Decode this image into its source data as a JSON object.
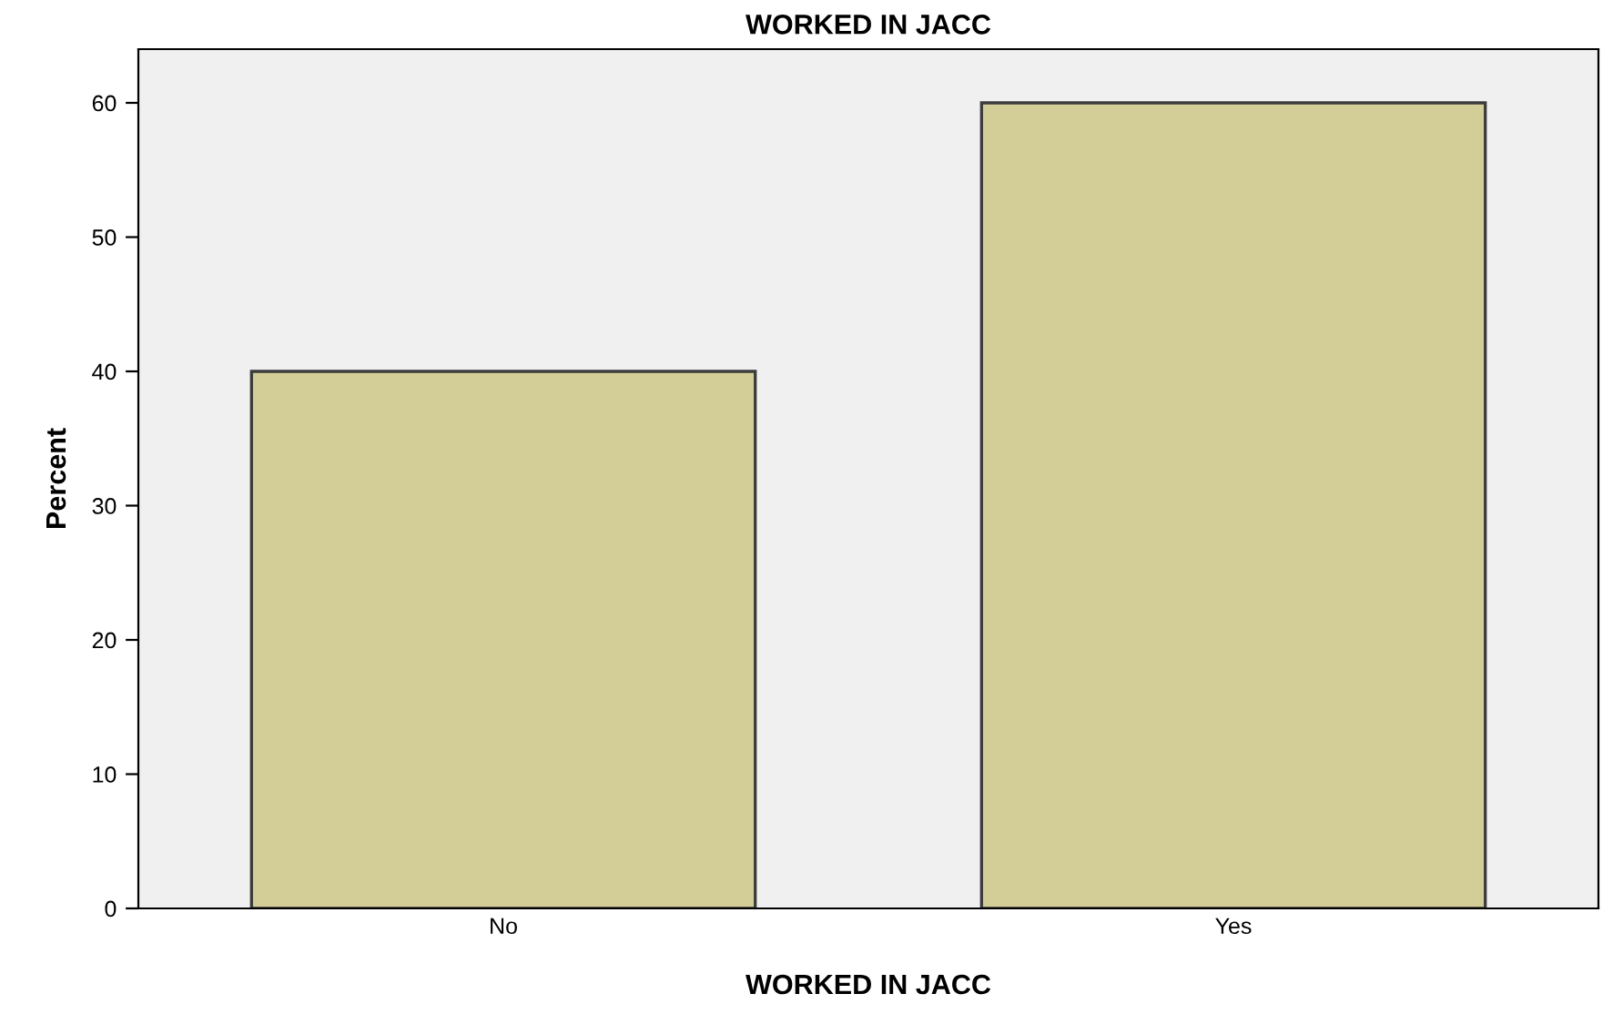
{
  "chart_data": {
    "type": "bar",
    "title": "WORKED IN JACC",
    "xlabel": "WORKED IN JACC",
    "ylabel": "Percent",
    "categories": [
      "No",
      "Yes"
    ],
    "values": [
      40,
      60
    ],
    "color": "#d3ce97",
    "ylim": [
      0,
      64
    ],
    "yticks": [
      0,
      10,
      20,
      30,
      40,
      50,
      60
    ],
    "grid": false
  }
}
